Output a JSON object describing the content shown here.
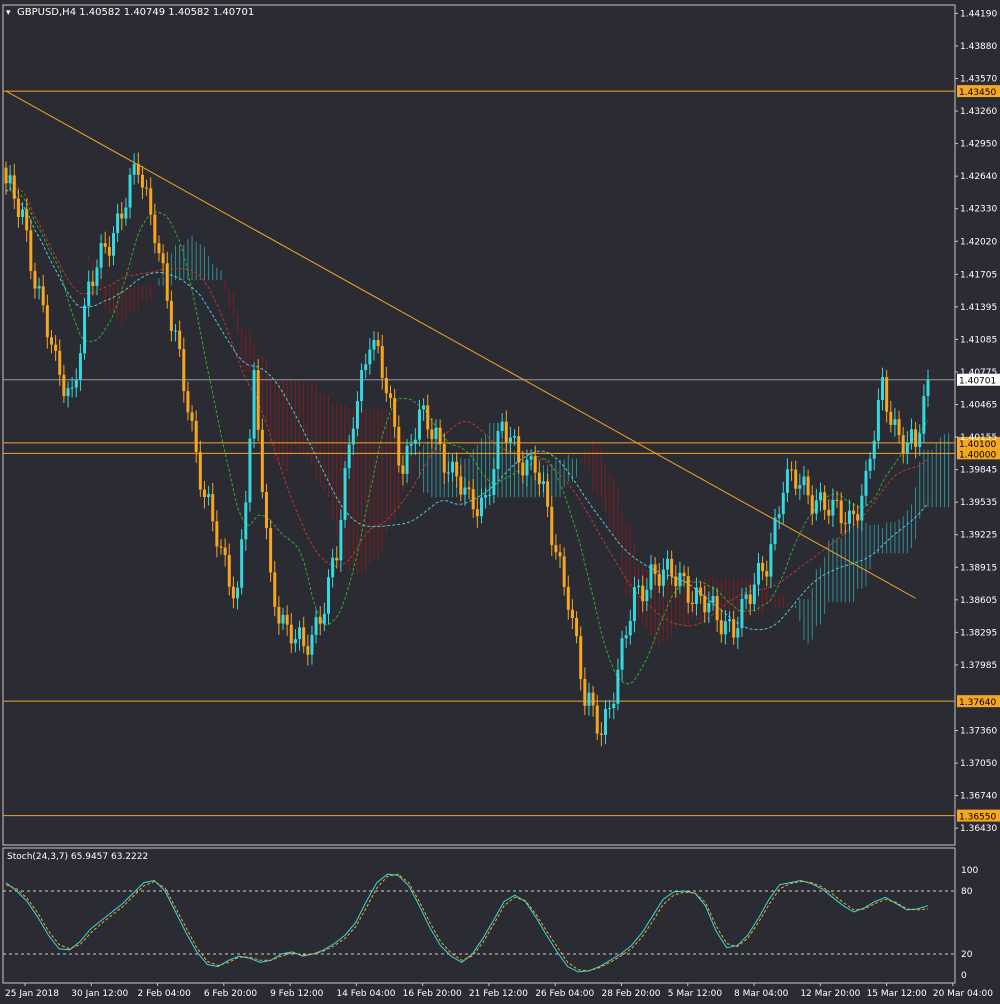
{
  "header": {
    "symbol_line": "GBPUSD,H4  1.40582 1.40749 1.40582 1.40701"
  },
  "colors": {
    "background": "#2b2b33",
    "grid_frame": "#c8c8c8",
    "bull": "#36d9de",
    "bear": "#f5a623",
    "level_line": "#f5a623",
    "trend_line": "#f5a623",
    "kumo_bull": "#2f8f93",
    "kumo_bear": "#7d1f1f",
    "ma_green": "#2fae2f",
    "ma_red": "#b83a2e",
    "ma_cyan": "#52c8d6",
    "last_price_line": "#9a9aa0",
    "stoch_main": "#36d9de",
    "stoch_signal": "#f5a623",
    "axis_text": "#ffffff"
  },
  "chart_data": [
    {
      "type": "candlestick",
      "title": "GBPUSD,H4  1.40582 1.40749 1.40582 1.40701",
      "ylim": [
        1.3627,
        1.4427
      ],
      "y_ticks": [
        "1.44190",
        "1.43880",
        "1.43570",
        "1.43260",
        "1.42950",
        "1.42640",
        "1.42330",
        "1.42020",
        "1.41705",
        "1.41395",
        "1.41085",
        "1.40775",
        "1.40465",
        "1.40155",
        "1.39845",
        "1.39535",
        "1.39225",
        "1.38915",
        "1.38605",
        "1.38295",
        "1.37985",
        "1.37360",
        "1.37050",
        "1.36740",
        "1.36430"
      ],
      "x_labels": [
        "25 Jan 2018",
        "30 Jan 12:00",
        "2 Feb 04:00",
        "6 Feb 20:00",
        "9 Feb 12:00",
        "14 Feb 04:00",
        "16 Feb 20:00",
        "21 Feb 12:00",
        "26 Feb 04:00",
        "28 Feb 20:00",
        "5 Mar 12:00",
        "8 Mar 04:00",
        "12 Mar 20:00",
        "15 Mar 12:00",
        "20 Mar 04:00"
      ],
      "horizontal_levels": [
        {
          "price": 1.4345,
          "label": "1.43450"
        },
        {
          "price": 1.401,
          "label": "1.40100"
        },
        {
          "price": 1.4,
          "label": "1.40000"
        },
        {
          "price": 1.3764,
          "label": "1.37640"
        },
        {
          "price": 1.3655,
          "label": "1.36550"
        }
      ],
      "last_price": {
        "price": 1.40701,
        "label": "1.40701"
      },
      "trend_line": [
        {
          "bar": 0,
          "price": 1.4345
        },
        {
          "bar": 220,
          "price": 1.3862
        }
      ],
      "ohlc_anchors": [
        [
          0,
          1.425
        ],
        [
          4,
          1.423
        ],
        [
          8,
          1.415
        ],
        [
          12,
          1.408
        ],
        [
          16,
          1.406
        ],
        [
          20,
          1.415
        ],
        [
          24,
          1.42
        ],
        [
          28,
          1.423
        ],
        [
          32,
          1.427
        ],
        [
          36,
          1.422
        ],
        [
          40,
          1.412
        ],
        [
          44,
          1.405
        ],
        [
          48,
          1.396
        ],
        [
          52,
          1.39
        ],
        [
          56,
          1.387
        ],
        [
          60,
          1.406
        ],
        [
          64,
          1.388
        ],
        [
          68,
          1.383
        ],
        [
          72,
          1.381
        ],
        [
          76,
          1.385
        ],
        [
          80,
          1.39
        ],
        [
          84,
          1.404
        ],
        [
          88,
          1.411
        ],
        [
          92,
          1.406
        ],
        [
          96,
          1.399
        ],
        [
          100,
          1.403
        ],
        [
          104,
          1.402
        ],
        [
          108,
          1.398
        ],
        [
          112,
          1.395
        ],
        [
          116,
          1.396
        ],
        [
          120,
          1.402
        ],
        [
          124,
          1.4
        ],
        [
          128,
          1.399
        ],
        [
          132,
          1.392
        ],
        [
          136,
          1.387
        ],
        [
          140,
          1.376
        ],
        [
          144,
          1.374
        ],
        [
          148,
          1.379
        ],
        [
          152,
          1.386
        ],
        [
          156,
          1.389
        ],
        [
          160,
          1.388
        ],
        [
          164,
          1.388
        ],
        [
          168,
          1.386
        ],
        [
          172,
          1.384
        ],
        [
          176,
          1.384
        ],
        [
          180,
          1.386
        ],
        [
          184,
          1.39
        ],
        [
          188,
          1.397
        ],
        [
          192,
          1.397
        ],
        [
          196,
          1.396
        ],
        [
          200,
          1.394
        ],
        [
          204,
          1.394
        ],
        [
          208,
          1.397
        ],
        [
          212,
          1.406
        ],
        [
          216,
          1.402
        ],
        [
          220,
          1.4
        ],
        [
          223,
          1.40701
        ]
      ],
      "bar_count": 224
    },
    {
      "type": "line",
      "title": "Stoch(24,3,7) 65.9457 63.2222",
      "ylim": [
        0,
        100
      ],
      "y_ticks": [
        "100",
        "80",
        "20",
        "0"
      ],
      "levels": [
        80,
        20
      ],
      "series": [
        {
          "name": "main",
          "values": [
            88,
            80,
            70,
            55,
            38,
            25,
            24,
            32,
            44,
            52,
            60,
            68,
            78,
            88,
            90,
            80,
            60,
            40,
            22,
            10,
            8,
            14,
            18,
            16,
            12,
            14,
            20,
            22,
            18,
            20,
            24,
            30,
            38,
            50,
            70,
            88,
            96,
            95,
            85,
            66,
            45,
            28,
            18,
            12,
            20,
            35,
            52,
            70,
            76,
            70,
            55,
            38,
            22,
            8,
            3,
            4,
            8,
            14,
            20,
            28,
            40,
            56,
            72,
            79,
            80,
            78,
            66,
            42,
            26,
            28,
            38,
            54,
            72,
            86,
            88,
            90,
            87,
            82,
            74,
            66,
            60,
            64,
            70,
            74,
            68,
            62,
            63,
            66
          ]
        },
        {
          "name": "signal",
          "values": [
            86,
            82,
            73,
            59,
            42,
            29,
            25,
            29,
            40,
            49,
            57,
            65,
            75,
            85,
            89,
            83,
            64,
            45,
            26,
            13,
            9,
            12,
            17,
            17,
            14,
            14,
            18,
            21,
            19,
            20,
            23,
            28,
            35,
            46,
            64,
            83,
            94,
            96,
            88,
            70,
            50,
            32,
            21,
            14,
            18,
            31,
            48,
            66,
            74,
            71,
            58,
            42,
            27,
            12,
            5,
            4,
            7,
            12,
            18,
            25,
            36,
            51,
            67,
            76,
            79,
            78,
            69,
            47,
            30,
            27,
            35,
            50,
            67,
            82,
            87,
            89,
            88,
            84,
            77,
            69,
            62,
            63,
            68,
            72,
            69,
            63,
            62,
            63
          ]
        }
      ]
    }
  ]
}
